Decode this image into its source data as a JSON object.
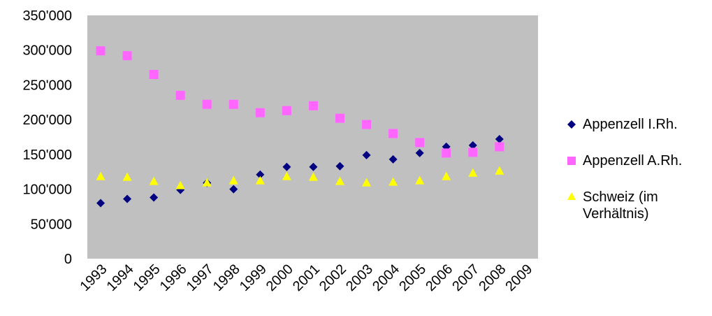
{
  "chart_data": {
    "type": "scatter",
    "x": [
      "1993",
      "1994",
      "1995",
      "1996",
      "1997",
      "1998",
      "1999",
      "2000",
      "2001",
      "2002",
      "2003",
      "2004",
      "2005",
      "2006",
      "2007",
      "2008",
      "2009"
    ],
    "ylim": [
      0,
      350000
    ],
    "yticks": [
      "0",
      "50'000",
      "100'000",
      "150'000",
      "200'000",
      "250'000",
      "300'000",
      "350'000"
    ],
    "ytick_values": [
      0,
      50000,
      100000,
      150000,
      200000,
      250000,
      300000,
      350000
    ],
    "grid": false,
    "legend_position": "right",
    "plot_background": "#c0c0c0",
    "series": [
      {
        "name": "Appenzell I.Rh.",
        "marker": "diamond",
        "color": "#000080",
        "values": [
          80000,
          86000,
          88000,
          99000,
          109000,
          100000,
          121000,
          132000,
          132000,
          133000,
          149000,
          143000,
          152000,
          161000,
          163000,
          172000
        ]
      },
      {
        "name": "Appenzell A.Rh.",
        "marker": "square",
        "color": "#ff66ff",
        "values": [
          299000,
          292000,
          265000,
          235000,
          222000,
          222000,
          210000,
          213000,
          220000,
          202000,
          193000,
          180000,
          167000,
          152000,
          153000,
          161000
        ]
      },
      {
        "name": "Schweiz (im Verhältnis)",
        "marker": "triangle",
        "color": "#ffff00",
        "values": [
          118000,
          117000,
          111000,
          105000,
          109000,
          112000,
          112000,
          118000,
          117000,
          111000,
          109000,
          110000,
          112000,
          118000,
          123000,
          126000
        ]
      }
    ]
  },
  "legend": {
    "items": [
      {
        "label": "Appenzell I.Rh."
      },
      {
        "label": "Appenzell A.Rh."
      },
      {
        "label_line1": "Schweiz (im",
        "label_line2": "Verhältnis)"
      }
    ]
  }
}
